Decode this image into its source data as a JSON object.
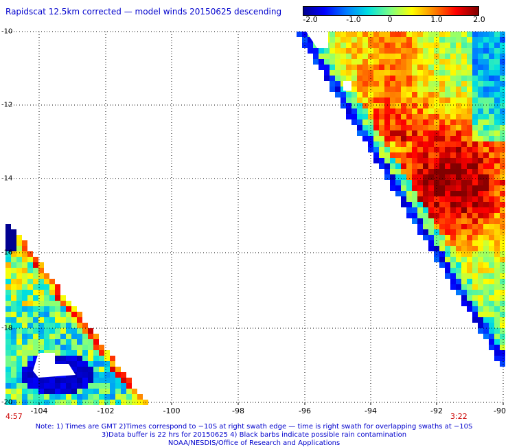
{
  "title": "Rapidscat 12.5km corrected — model winds 20150625 descending",
  "colorbar": {
    "labels": [
      "-2.0",
      "-1.0",
      "0",
      "1.0",
      "2.0"
    ],
    "min": -2.0,
    "max": 2.0
  },
  "map": {
    "lat_labels": [
      "-10",
      "-12",
      "-14",
      "-16",
      "-18",
      "-20"
    ],
    "lon_labels": [
      "-104",
      "-102",
      "-100",
      "-98",
      "-96",
      "-94",
      "-92",
      "-90"
    ],
    "lat_range": [
      -20,
      -10
    ],
    "lon_range": [
      -105,
      -90
    ]
  },
  "times": {
    "left": "4:57",
    "right": "3:22"
  },
  "notes": {
    "line1": "Note: 1) Times are GMT 2)Times correspond to −10S at right swath edge — time is right swath for overlapping swaths at −10S",
    "line2": "3)Data buffer is 22 hrs for 20150625 4) Black barbs indicate possible rain contamination",
    "line3": "NOAA/NESDIS/Office of Research and Applications"
  },
  "colors": {
    "title": "#0000cc",
    "time": "#cc0000",
    "grid": "#000000"
  }
}
